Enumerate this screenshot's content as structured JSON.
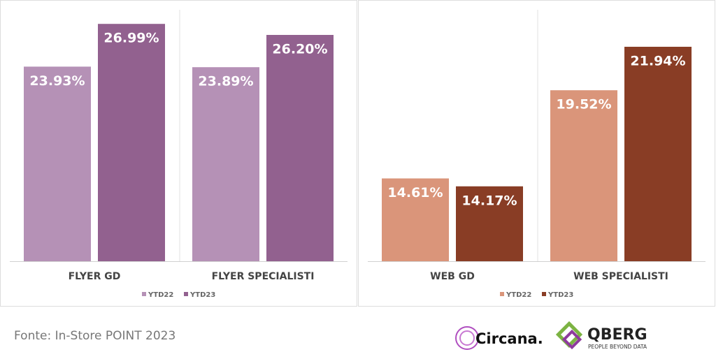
{
  "chart_data": [
    {
      "type": "bar",
      "categories": [
        "FLYER GD",
        "FLYER SPECIALISTI"
      ],
      "series": [
        {
          "name": "YTD22",
          "color": "#b591b6",
          "values": [
            23.93,
            23.89
          ],
          "value_labels": [
            "23.93%",
            "23.89%"
          ]
        },
        {
          "name": "YTD23",
          "color": "#92618f",
          "values": [
            26.99,
            26.2
          ],
          "value_labels": [
            "26.99%",
            "26.20%"
          ]
        }
      ],
      "ylim": [
        10,
        28
      ]
    },
    {
      "type": "bar",
      "categories": [
        "WEB GD",
        "WEB SPECIALISTI"
      ],
      "series": [
        {
          "name": "YTD22",
          "color": "#da957a",
          "values": [
            14.61,
            19.52
          ],
          "value_labels": [
            "14.61%",
            "19.52%"
          ]
        },
        {
          "name": "YTD23",
          "color": "#893d25",
          "values": [
            14.17,
            21.94
          ],
          "value_labels": [
            "14.17%",
            "21.94%"
          ]
        }
      ],
      "ylim": [
        10,
        24
      ]
    }
  ],
  "footer": {
    "source": "Fonte: In-Store POINT 2023",
    "logo_1": "Circana.",
    "logo_2": "QBERG",
    "logo_2_tagline": "PEOPLE BEYOND DATA"
  }
}
